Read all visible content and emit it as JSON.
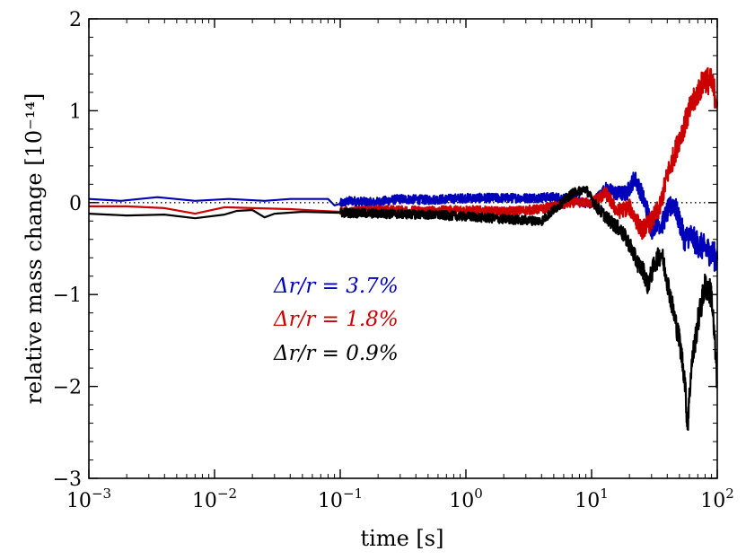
{
  "chart_data": {
    "type": "line",
    "xscale": "log",
    "xlim": [
      0.001,
      100
    ],
    "ylim": [
      -3,
      2
    ],
    "xlabel": "time [s]",
    "ylabel": "relative mass change [10⁻¹⁴]",
    "x_ticks": [
      {
        "value": 0.001,
        "base": "10",
        "exp": "−3"
      },
      {
        "value": 0.01,
        "base": "10",
        "exp": "−2"
      },
      {
        "value": 0.1,
        "base": "10",
        "exp": "−1"
      },
      {
        "value": 1,
        "base": "10",
        "exp": "0"
      },
      {
        "value": 10,
        "base": "10",
        "exp": "1"
      },
      {
        "value": 100,
        "base": "10",
        "exp": "2"
      }
    ],
    "y_ticks": [
      {
        "value": 2,
        "label": "2"
      },
      {
        "value": 1,
        "label": "1"
      },
      {
        "value": 0,
        "label": "0"
      },
      {
        "value": -1,
        "label": "−1"
      },
      {
        "value": -2,
        "label": "−2"
      },
      {
        "value": -3,
        "label": "−3"
      }
    ],
    "reference_line": {
      "y": 0,
      "style": "dotted",
      "color": "#000000"
    },
    "legend_placement": "center-left",
    "series": [
      {
        "name": "Δr/r = 3.7%",
        "color": "#0000bb",
        "points": [
          [
            0.001,
            0.04
          ],
          [
            0.0018,
            0.02
          ],
          [
            0.0035,
            0.06
          ],
          [
            0.007,
            0.02
          ],
          [
            0.013,
            0.04
          ],
          [
            0.025,
            0.02
          ],
          [
            0.04,
            0.04
          ],
          [
            0.08,
            0.04
          ],
          [
            0.09,
            -0.03
          ],
          [
            0.12,
            0.02
          ],
          [
            0.18,
            0.0
          ],
          [
            0.3,
            0.04
          ],
          [
            0.5,
            0.03
          ],
          [
            1,
            0.05
          ],
          [
            2,
            0.05
          ],
          [
            3,
            0.05
          ],
          [
            5,
            0.06
          ],
          [
            7,
            0.04
          ],
          [
            10,
            -0.02
          ],
          [
            13,
            0.15
          ],
          [
            16,
            0.1
          ],
          [
            19,
            0.1
          ],
          [
            22,
            0.27
          ],
          [
            25,
            0.1
          ],
          [
            28,
            -0.1
          ],
          [
            30,
            -0.3
          ],
          [
            33,
            -0.2
          ],
          [
            36,
            -0.25
          ],
          [
            40,
            -0.1
          ],
          [
            45,
            0.0
          ],
          [
            50,
            -0.2
          ],
          [
            55,
            -0.4
          ],
          [
            60,
            -0.35
          ],
          [
            70,
            -0.45
          ],
          [
            80,
            -0.5
          ],
          [
            90,
            -0.55
          ],
          [
            100,
            -0.62
          ]
        ]
      },
      {
        "name": "Δr/r = 1.8%",
        "color": "#cc0000",
        "points": [
          [
            0.001,
            -0.04
          ],
          [
            0.002,
            -0.04
          ],
          [
            0.004,
            -0.06
          ],
          [
            0.007,
            -0.12
          ],
          [
            0.012,
            -0.05
          ],
          [
            0.02,
            -0.06
          ],
          [
            0.04,
            -0.07
          ],
          [
            0.07,
            -0.09
          ],
          [
            0.1,
            -0.1
          ],
          [
            0.2,
            -0.08
          ],
          [
            0.5,
            -0.09
          ],
          [
            1,
            -0.08
          ],
          [
            2,
            -0.1
          ],
          [
            4,
            -0.07
          ],
          [
            7,
            0.0
          ],
          [
            10,
            0.0
          ],
          [
            13,
            0.1
          ],
          [
            16,
            -0.1
          ],
          [
            20,
            -0.05
          ],
          [
            25,
            -0.3
          ],
          [
            30,
            -0.2
          ],
          [
            35,
            -0.05
          ],
          [
            40,
            0.3
          ],
          [
            45,
            0.5
          ],
          [
            50,
            0.7
          ],
          [
            55,
            0.85
          ],
          [
            60,
            1.0
          ],
          [
            70,
            1.2
          ],
          [
            80,
            1.35
          ],
          [
            90,
            1.3
          ],
          [
            100,
            1.1
          ]
        ]
      },
      {
        "name": "Δr/r = 0.9%",
        "color": "#000000",
        "points": [
          [
            0.001,
            -0.12
          ],
          [
            0.002,
            -0.14
          ],
          [
            0.004,
            -0.13
          ],
          [
            0.007,
            -0.17
          ],
          [
            0.012,
            -0.13
          ],
          [
            0.015,
            -0.09
          ],
          [
            0.02,
            -0.08
          ],
          [
            0.025,
            -0.16
          ],
          [
            0.03,
            -0.12
          ],
          [
            0.05,
            -0.1
          ],
          [
            0.1,
            -0.11
          ],
          [
            0.2,
            -0.12
          ],
          [
            0.5,
            -0.13
          ],
          [
            1,
            -0.15
          ],
          [
            2,
            -0.18
          ],
          [
            4,
            -0.2
          ],
          [
            7,
            0.1
          ],
          [
            9,
            0.15
          ],
          [
            11,
            -0.05
          ],
          [
            14,
            -0.2
          ],
          [
            17,
            -0.3
          ],
          [
            20,
            -0.45
          ],
          [
            23,
            -0.65
          ],
          [
            26,
            -0.75
          ],
          [
            28,
            -0.9
          ],
          [
            32,
            -0.65
          ],
          [
            36,
            -0.55
          ],
          [
            40,
            -0.85
          ],
          [
            45,
            -1.2
          ],
          [
            50,
            -1.5
          ],
          [
            55,
            -1.9
          ],
          [
            58,
            -2.45
          ],
          [
            62,
            -1.8
          ],
          [
            70,
            -1.3
          ],
          [
            80,
            -0.9
          ],
          [
            90,
            -1.0
          ],
          [
            100,
            -1.95
          ]
        ]
      }
    ]
  }
}
